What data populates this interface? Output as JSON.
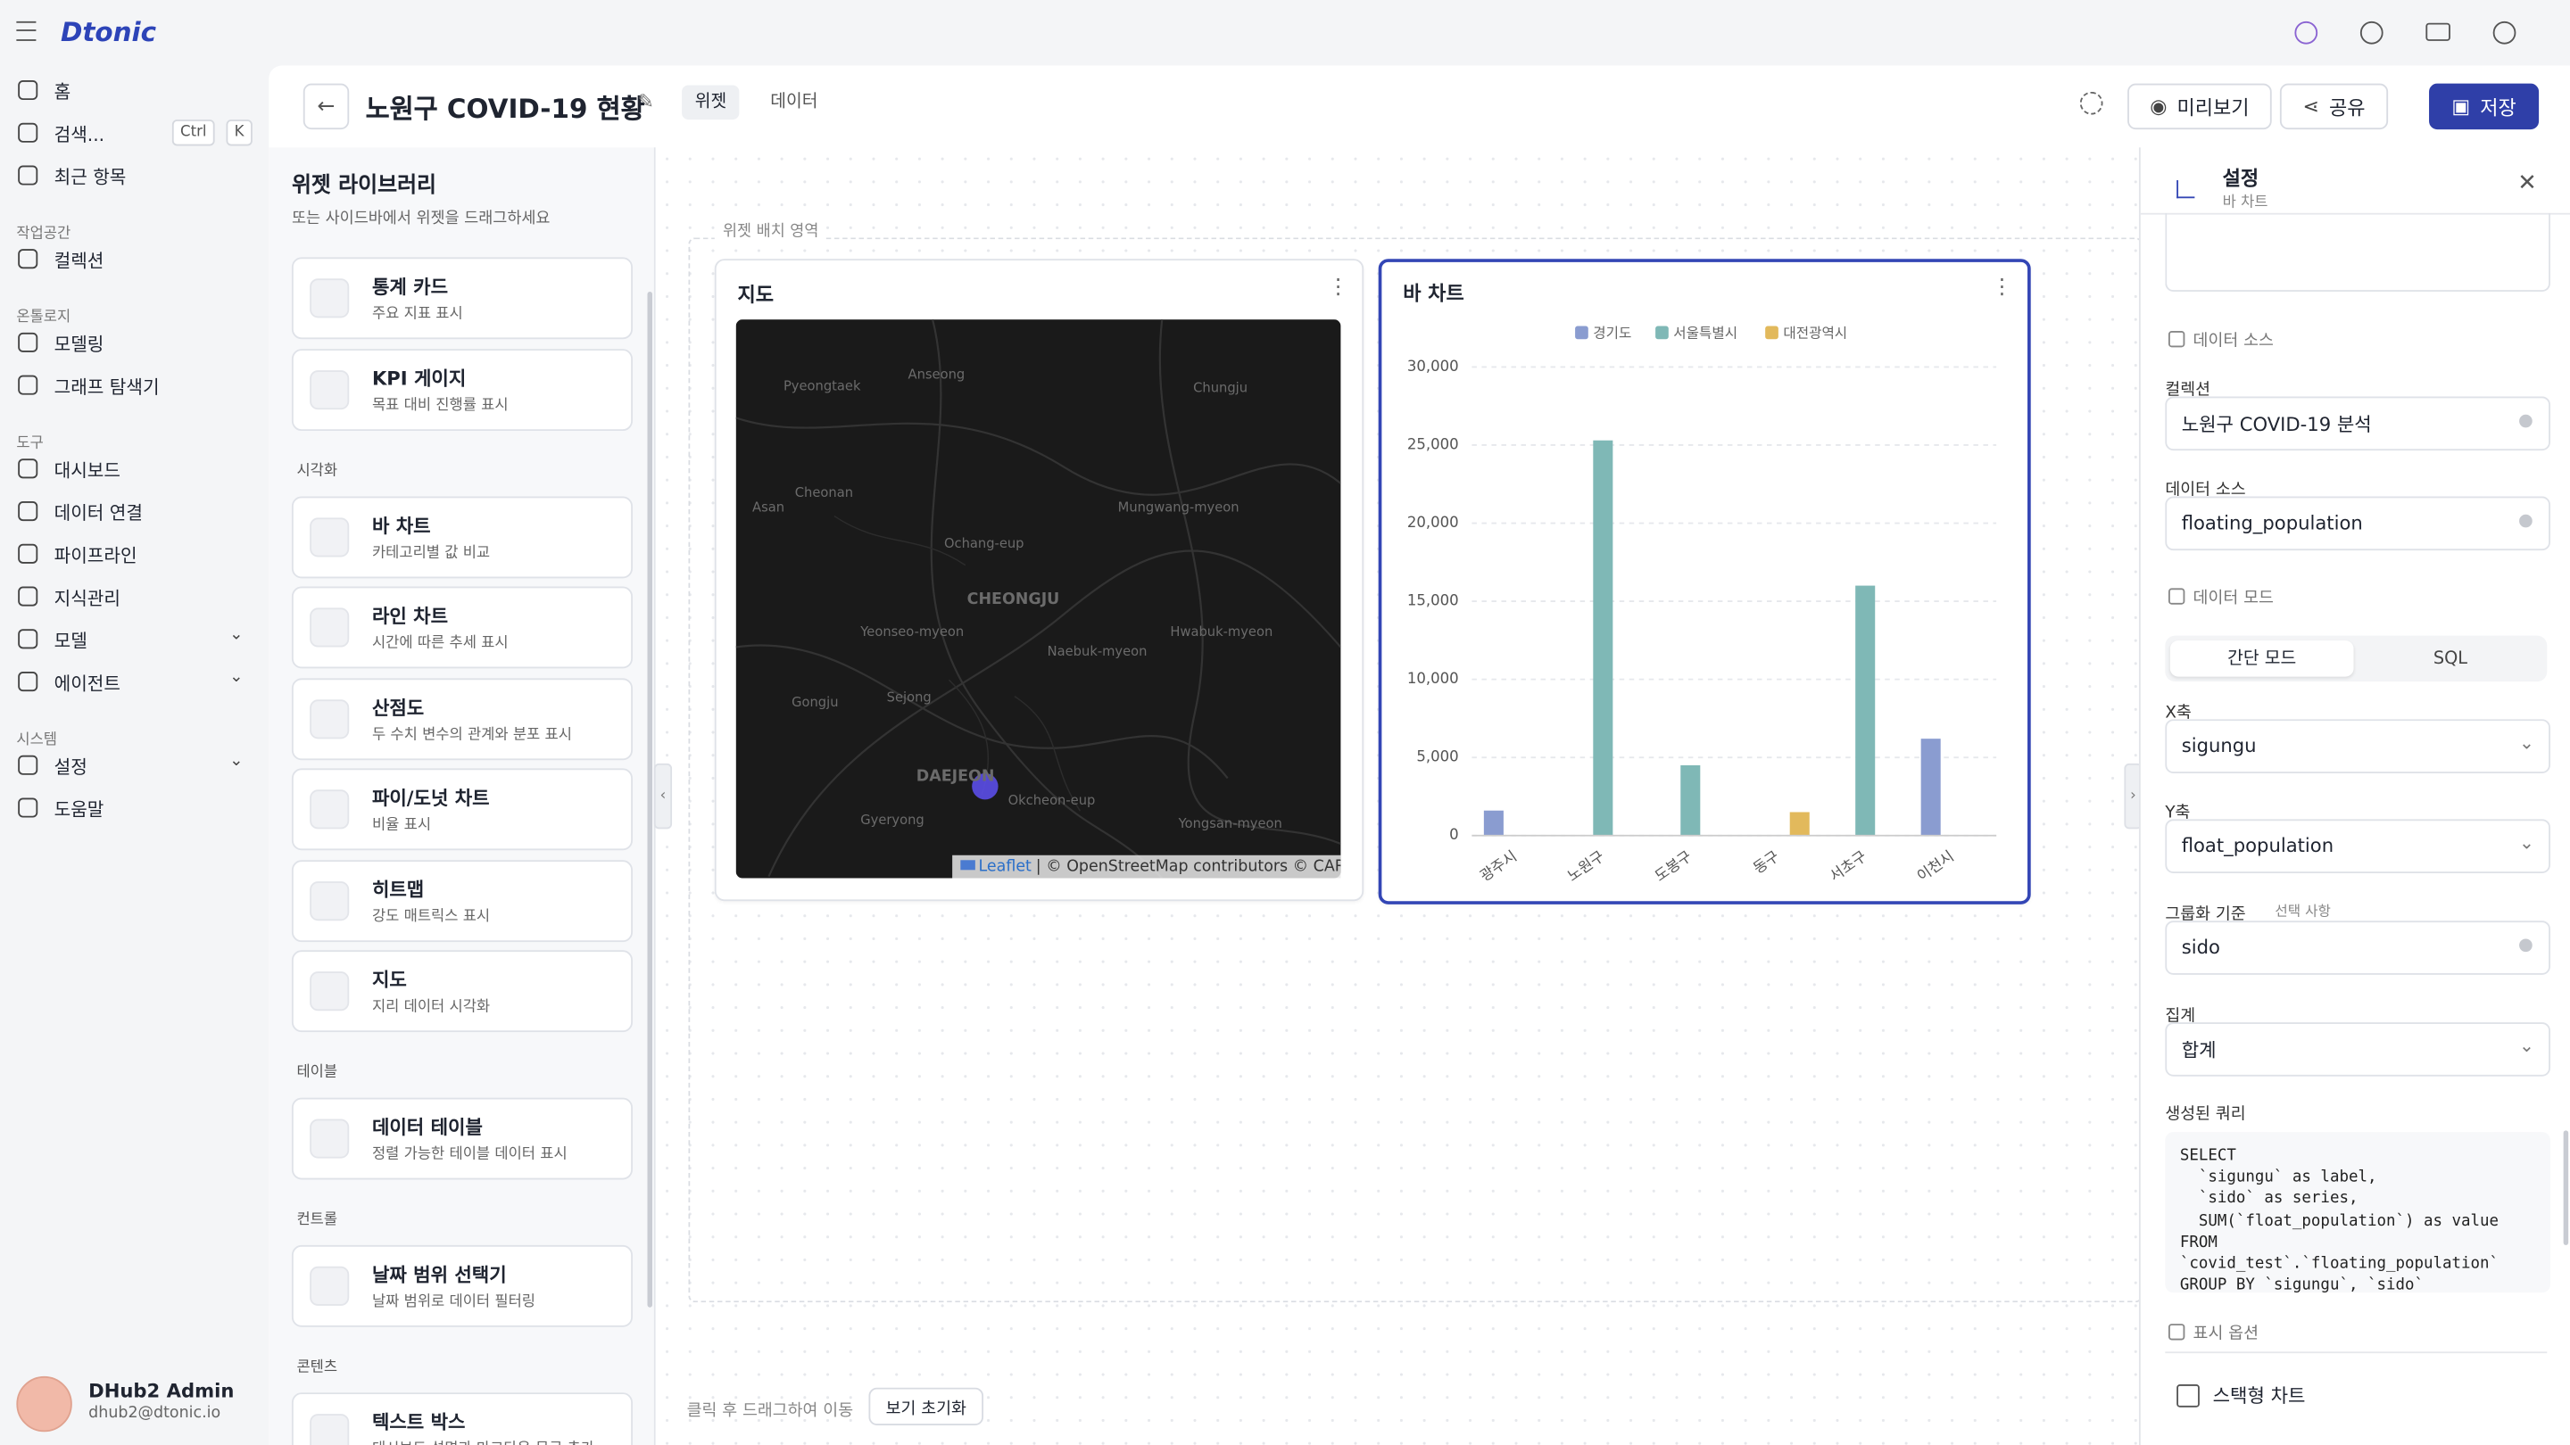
{
  "app": {
    "logo": "Dtonic"
  },
  "sidebar": {
    "sections": [
      {
        "items": [
          {
            "label": "홈"
          },
          {
            "label": "검색...",
            "shortcut": [
              "Ctrl",
              "K"
            ]
          },
          {
            "label": "최근 항목"
          }
        ]
      },
      {
        "heading": "작업공간",
        "items": [
          {
            "label": "컬렉션"
          }
        ]
      },
      {
        "heading": "온톨로지",
        "items": [
          {
            "label": "모델링"
          },
          {
            "label": "그래프 탐색기"
          }
        ]
      },
      {
        "heading": "도구",
        "items": [
          {
            "label": "대시보드"
          },
          {
            "label": "데이터 연결"
          },
          {
            "label": "파이프라인"
          },
          {
            "label": "지식관리"
          },
          {
            "label": "모델",
            "has_submenu": true
          },
          {
            "label": "에이전트",
            "has_submenu": true
          }
        ]
      },
      {
        "heading": "시스템",
        "items": [
          {
            "label": "설정",
            "has_submenu": true
          },
          {
            "label": "도움말"
          }
        ]
      }
    ],
    "user": {
      "name": "DHub2 Admin",
      "email": "dhub2@dtonic.io"
    }
  },
  "header": {
    "title": "노원구 COVID-19 현황",
    "tabs": [
      "위젯",
      "데이터"
    ],
    "active_tab": 0,
    "buttons": [
      "미리보기",
      "공유",
      "저장"
    ]
  },
  "library": {
    "title": "위젯 라이브러리",
    "subtitle": "또는 사이드바에서 위젯을 드래그하세요",
    "sections": [
      {
        "items": [
          {
            "name": "통계 카드",
            "description": "주요 지표 표시"
          },
          {
            "name": "KPI 게이지",
            "description": "목표 대비 진행률 표시"
          }
        ]
      },
      {
        "heading": "시각화",
        "items": [
          {
            "name": "바 차트",
            "description": "카테고리별 값 비교"
          },
          {
            "name": "라인 차트",
            "description": "시간에 따른 추세 표시"
          },
          {
            "name": "산점도",
            "description": "두 수치 변수의 관계와 분포 표시"
          },
          {
            "name": "파이/도넛 차트",
            "description": "비율 표시"
          },
          {
            "name": "히트맵",
            "description": "강도 매트릭스 표시"
          },
          {
            "name": "지도",
            "description": "지리 데이터 시각화"
          }
        ]
      },
      {
        "heading": "테이블",
        "items": [
          {
            "name": "데이터 테이블",
            "description": "정렬 가능한 테이블 데이터 표시"
          }
        ]
      },
      {
        "heading": "컨트롤",
        "items": [
          {
            "name": "날짜 범위 선택기",
            "description": "날짜 범위로 데이터 필터링"
          }
        ]
      },
      {
        "heading": "콘텐츠",
        "items": [
          {
            "name": "텍스트 박스",
            "description": "대시보드 설명과 마크다운 문구 추가"
          }
        ]
      }
    ]
  },
  "canvas": {
    "area_label": "위젯 배치 영역",
    "hint": "클릭 후 드래그하여 이동",
    "reset": "보기 초기화"
  },
  "map_widget": {
    "title": "지도",
    "labels": [
      "Pyeongtaek",
      "Anseong",
      "Chungju",
      "Cheonan",
      "Asan",
      "Ochang-eup",
      "Mungwang-myeon",
      "CHEONGJU",
      "Yeonseo-myeon",
      "Hwabuk-myeon",
      "Naebuk-myeon",
      "Gongju",
      "Sejong",
      "DAEJEON",
      "Okcheon-eup",
      "Gyeryong",
      "Yongsan-myeon"
    ],
    "attribution_link": "Leaflet",
    "attribution": "| © OpenStreetMap contributors © CARTO"
  },
  "chart_data": {
    "type": "bar",
    "title": "바 차트",
    "categories": [
      "광주시",
      "노원구",
      "도봉구",
      "동구",
      "서초구",
      "이천시"
    ],
    "series": [
      {
        "name": "경기도",
        "color": "#8a9cd0",
        "values": [
          1600,
          null,
          null,
          null,
          null,
          6200
        ]
      },
      {
        "name": "서울특별시",
        "color": "#7fb8b6",
        "values": [
          null,
          25300,
          4500,
          null,
          16000,
          null
        ]
      },
      {
        "name": "대전광역시",
        "color": "#e2b95c",
        "values": [
          null,
          null,
          null,
          1500,
          null,
          null
        ]
      }
    ],
    "ylim": [
      0,
      30000
    ],
    "yticks": [
      0,
      {
        "value": 5000,
        "label": "5,000"
      },
      {
        "value": 10000,
        "label": "10,000"
      },
      {
        "value": 15000,
        "label": "15,000"
      },
      {
        "value": 20000,
        "label": "20,000"
      },
      {
        "value": 25000,
        "label": "25,000"
      },
      {
        "value": 30000,
        "label": "30,000"
      }
    ],
    "grid": true,
    "legend": "top"
  },
  "settings": {
    "title": "설정",
    "subtitle": "바 차트",
    "data_source_heading": "데이터 소스",
    "source_fields": [
      {
        "label": "컬렉션",
        "value": "노원구 COVID-19 분석",
        "control": "input"
      },
      {
        "label": "데이터 소스",
        "value": "floating_population",
        "control": "input"
      }
    ],
    "data_mode_heading": "데이터 모드",
    "modes": [
      "간단 모드",
      "SQL"
    ],
    "active_mode": 0,
    "mode_fields": [
      {
        "label": "X축",
        "value": "sigungu",
        "control": "select"
      },
      {
        "label": "Y축",
        "value": "float_population",
        "control": "select"
      },
      {
        "label": "그룹화 기준",
        "note": "선택 사항",
        "value": "sido",
        "control": "input"
      },
      {
        "label": "집계",
        "value": "합계",
        "control": "select"
      }
    ],
    "query_label": "생성된 쿼리",
    "query": [
      "SELECT",
      "  `sigungu` as label,",
      "  `sido` as series,",
      "  SUM(`float_population`) as value",
      "FROM",
      "`covid_test`.`floating_population`",
      "GROUP BY `sigungu`, `sido`"
    ],
    "display_heading": "표시 옵션",
    "stacked_label": "스택형 차트",
    "stacked": false
  }
}
